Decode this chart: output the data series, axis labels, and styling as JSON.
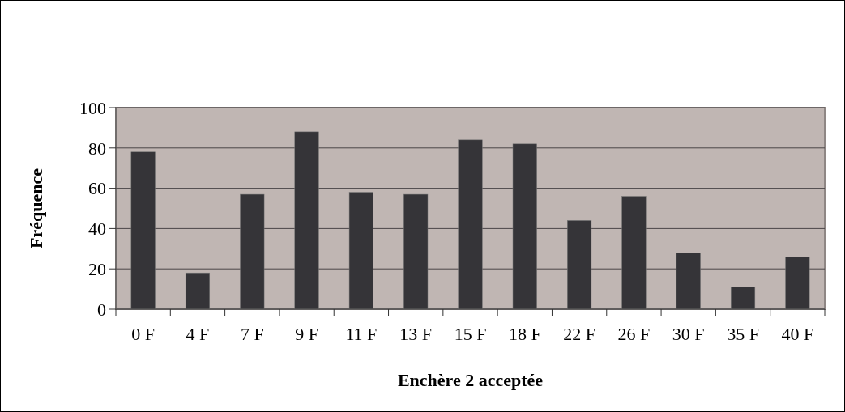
{
  "chart_data": {
    "type": "bar",
    "xlabel": "Enchère 2 acceptée",
    "ylabel": "Fréquence",
    "categories": [
      "0 F",
      "4 F",
      "7 F",
      "9 F",
      "11 F",
      "13 F",
      "15 F",
      "18 F",
      "22 F",
      "26 F",
      "30 F",
      "35 F",
      "40 F"
    ],
    "values": [
      78,
      18,
      57,
      88,
      58,
      57,
      84,
      82,
      44,
      56,
      28,
      11,
      26
    ],
    "color": "#353438",
    "ylim": [
      0,
      100
    ],
    "yticks": [
      0,
      20,
      40,
      60,
      80,
      100
    ],
    "grid": "y"
  }
}
